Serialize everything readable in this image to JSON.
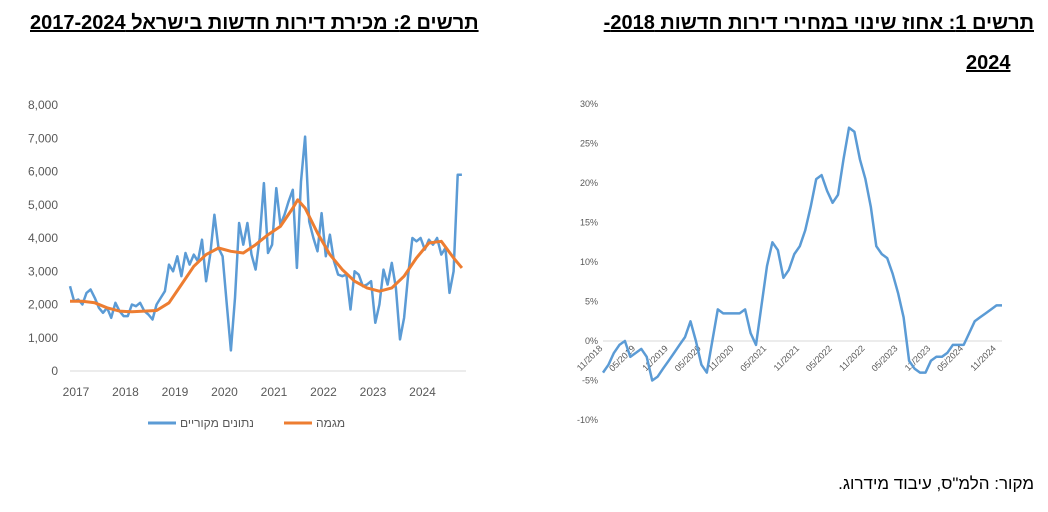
{
  "titles": {
    "left": "תרשים 2: מכירת דירות חדשות בישראל 2017-2024",
    "right_line1": "תרשים 1: אחוז שינוי במחירי דירות חדשות 2018-",
    "right_line2": "2024"
  },
  "source": "מקור: הלמ\"ס, עיבוד מידרוג.",
  "chart_data": [
    {
      "type": "line",
      "title": "תרשים 2: מכירת דירות חדשות בישראל 2017-2024",
      "x_tick_labels": [
        "2017",
        "2018",
        "2019",
        "2020",
        "2021",
        "2022",
        "2023",
        "2024"
      ],
      "y_tick_labels": [
        "0",
        "1,000",
        "2,000",
        "3,000",
        "4,000",
        "5,000",
        "6,000",
        "7,000",
        "8,000"
      ],
      "ylim": [
        0,
        8000
      ],
      "xlim": [
        2017,
        2025
      ],
      "legend": {
        "position": "bottom",
        "entries": [
          "נתונים מקוריים",
          "מגמה"
        ]
      },
      "series": [
        {
          "name": "נתונים מקוריים",
          "color": "#5b9bd5",
          "x": [
            2017.0,
            2017.083,
            2017.167,
            2017.25,
            2017.333,
            2017.417,
            2017.5,
            2017.583,
            2017.667,
            2017.75,
            2017.833,
            2017.917,
            2018.0,
            2018.083,
            2018.167,
            2018.25,
            2018.333,
            2018.417,
            2018.5,
            2018.583,
            2018.667,
            2018.75,
            2018.833,
            2018.917,
            2019.0,
            2019.083,
            2019.167,
            2019.25,
            2019.333,
            2019.417,
            2019.5,
            2019.583,
            2019.667,
            2019.75,
            2019.833,
            2019.917,
            2020.0,
            2020.083,
            2020.167,
            2020.25,
            2020.333,
            2020.417,
            2020.5,
            2020.583,
            2020.667,
            2020.75,
            2020.833,
            2020.917,
            2021.0,
            2021.083,
            2021.167,
            2021.25,
            2021.333,
            2021.417,
            2021.5,
            2021.583,
            2021.667,
            2021.75,
            2021.833,
            2021.917,
            2022.0,
            2022.083,
            2022.167,
            2022.25,
            2022.333,
            2022.417,
            2022.5,
            2022.583,
            2022.667,
            2022.75,
            2022.833,
            2022.917,
            2023.0,
            2023.083,
            2023.167,
            2023.25,
            2023.333,
            2023.417,
            2023.5,
            2023.583,
            2023.667,
            2023.75,
            2023.833,
            2023.917,
            2024.0,
            2024.083,
            2024.167,
            2024.25,
            2024.333,
            2024.417,
            2024.5,
            2024.583,
            2024.667,
            2024.75,
            2024.833,
            2024.917
          ],
          "y": [
            2550,
            2100,
            2150,
            2000,
            2350,
            2450,
            2200,
            1900,
            1750,
            1900,
            1600,
            2050,
            1800,
            1650,
            1650,
            2000,
            1950,
            2050,
            1800,
            1700,
            1550,
            2000,
            2200,
            2400,
            3200,
            3000,
            3450,
            2850,
            3550,
            3200,
            3500,
            3300,
            3950,
            2700,
            3500,
            4700,
            3700,
            3450,
            2000,
            620,
            2200,
            4450,
            3800,
            4450,
            3500,
            3050,
            4000,
            5650,
            3550,
            3800,
            5500,
            4400,
            4700,
            5100,
            5450,
            3100,
            5700,
            7050,
            4500,
            4000,
            3600,
            4750,
            3450,
            4100,
            3300,
            2900,
            2850,
            2900,
            1850,
            3000,
            2900,
            2550,
            2600,
            2700,
            1450,
            2000,
            3050,
            2600,
            3250,
            2500,
            950,
            1600,
            2900,
            4000,
            3900,
            4000,
            3650,
            3950,
            3800,
            4000,
            3500,
            3700,
            2350,
            3000,
            5900,
            5900
          ]
        },
        {
          "name": "מגמה",
          "color": "#ed7d31",
          "x": [
            2017.0,
            2017.25,
            2017.5,
            2017.75,
            2018.0,
            2018.25,
            2018.5,
            2018.75,
            2019.0,
            2019.25,
            2019.5,
            2019.75,
            2020.0,
            2020.25,
            2020.5,
            2020.75,
            2021.0,
            2021.25,
            2021.5,
            2021.6,
            2021.75,
            2022.0,
            2022.25,
            2022.5,
            2022.75,
            2023.0,
            2023.25,
            2023.5,
            2023.75,
            2024.0,
            2024.25,
            2024.5,
            2024.75,
            2024.917
          ],
          "y": [
            2100,
            2100,
            2050,
            1900,
            1800,
            1780,
            1800,
            1820,
            2050,
            2600,
            3150,
            3500,
            3700,
            3600,
            3550,
            3800,
            4100,
            4350,
            4900,
            5150,
            4900,
            4150,
            3500,
            3050,
            2700,
            2500,
            2400,
            2500,
            2850,
            3400,
            3850,
            3900,
            3400,
            3100
          ]
        }
      ]
    },
    {
      "type": "line",
      "title": "תרשים 1: אחוז שינוי במחירי דירות חדשות 2018-2024",
      "y_tick_labels": [
        "-10%",
        "-5%",
        "0%",
        "5%",
        "10%",
        "15%",
        "20%",
        "25%",
        "30%"
      ],
      "ylim": [
        -10,
        30
      ],
      "x_tick_labels": [
        "11/2018",
        "05/2019",
        "11/2019",
        "05/2020",
        "11/2020",
        "05/2021",
        "11/2021",
        "05/2022",
        "11/2022",
        "05/2023",
        "11/2023",
        "05/2024",
        "11/2024"
      ],
      "legend": "none",
      "series": [
        {
          "color": "#5b9bd5",
          "x": [
            "11/2018",
            "12/2018",
            "01/2019",
            "02/2019",
            "03/2019",
            "04/2019",
            "05/2019",
            "06/2019",
            "07/2019",
            "08/2019",
            "09/2019",
            "10/2019",
            "11/2019",
            "12/2019",
            "01/2020",
            "02/2020",
            "03/2020",
            "04/2020",
            "05/2020",
            "06/2020",
            "07/2020",
            "08/2020",
            "09/2020",
            "10/2020",
            "11/2020",
            "12/2020",
            "01/2021",
            "02/2021",
            "03/2021",
            "04/2021",
            "05/2021",
            "06/2021",
            "07/2021",
            "08/2021",
            "09/2021",
            "10/2021",
            "11/2021",
            "12/2021",
            "01/2022",
            "02/2022",
            "03/2022",
            "04/2022",
            "05/2022",
            "06/2022",
            "07/2022",
            "08/2022",
            "09/2022",
            "10/2022",
            "11/2022",
            "12/2022",
            "01/2023",
            "02/2023",
            "03/2023",
            "04/2023",
            "05/2023",
            "06/2023",
            "07/2023",
            "08/2023",
            "09/2023",
            "10/2023",
            "11/2023",
            "12/2023",
            "01/2024",
            "02/2024",
            "03/2024",
            "04/2024",
            "05/2024",
            "06/2024",
            "07/2024",
            "08/2024",
            "09/2024",
            "10/2024",
            "11/2024",
            "12/2024"
          ],
          "y": [
            -4.0,
            -3.0,
            -1.5,
            -0.5,
            0.0,
            -2.0,
            -1.5,
            -1.0,
            -2.0,
            -5.0,
            -4.5,
            -3.5,
            -2.5,
            -1.5,
            -0.5,
            0.5,
            2.5,
            0.0,
            -3.0,
            -4.0,
            0.0,
            4.0,
            3.5,
            3.5,
            3.5,
            3.5,
            4.0,
            1.0,
            -0.5,
            4.5,
            9.5,
            12.5,
            11.5,
            8.0,
            9.0,
            11.0,
            12.0,
            14.0,
            17.0,
            20.5,
            21.0,
            19.0,
            17.5,
            18.5,
            23.0,
            27.0,
            26.5,
            23.0,
            20.5,
            17.0,
            12.0,
            11.0,
            10.5,
            8.5,
            6.0,
            3.0,
            -2.5,
            -3.5,
            -4.0,
            -4.0,
            -2.5,
            -2.0,
            -2.0,
            -1.5,
            -0.5,
            -0.5,
            -0.5,
            1.0,
            2.5,
            3.0,
            3.5,
            4.0,
            4.5,
            4.5
          ]
        }
      ]
    }
  ]
}
